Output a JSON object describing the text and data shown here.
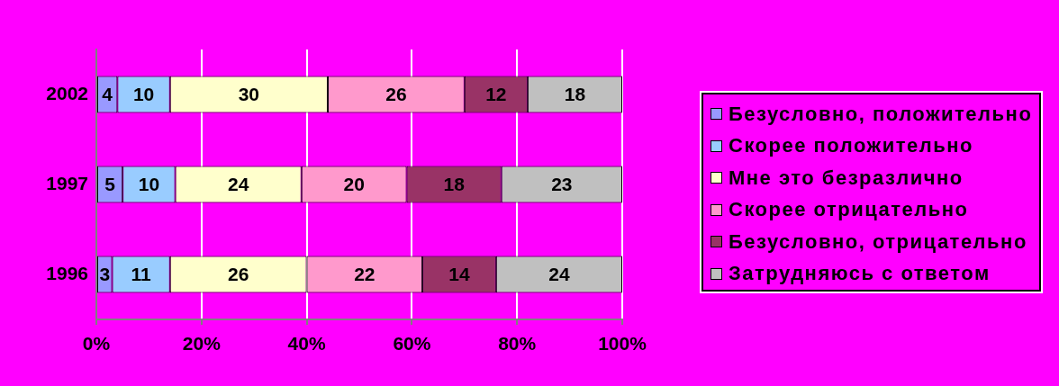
{
  "chart_data": {
    "type": "bar",
    "orientation": "horizontal",
    "stacked": true,
    "categories": [
      "2002",
      "1997",
      "1996"
    ],
    "series": [
      {
        "name": "Безусловно, положительно",
        "color": "#9999ff",
        "values": [
          4,
          5,
          3
        ]
      },
      {
        "name": "Скорее положительно",
        "color": "#99ccff",
        "values": [
          10,
          10,
          11
        ]
      },
      {
        "name": "Мне это безразлично",
        "color": "#ffffcc",
        "values": [
          30,
          24,
          26
        ]
      },
      {
        "name": "Скорее отрицательно",
        "color": "#ff99cc",
        "values": [
          26,
          20,
          22
        ]
      },
      {
        "name": "Безусловно, отрицательно",
        "color": "#993366",
        "values": [
          12,
          18,
          14
        ]
      },
      {
        "name": "Затрудняюсь с ответом",
        "color": "#c0c0c0",
        "values": [
          18,
          23,
          24
        ]
      }
    ],
    "xlim": [
      0,
      100
    ],
    "xticks": [
      {
        "value": 0,
        "label": "0%"
      },
      {
        "value": 20,
        "label": "20%"
      },
      {
        "value": 40,
        "label": "40%"
      },
      {
        "value": 60,
        "label": "60%"
      },
      {
        "value": 80,
        "label": "80%"
      },
      {
        "value": 100,
        "label": "100%"
      }
    ],
    "grid": "x",
    "legend": "right",
    "data_labels": true
  }
}
